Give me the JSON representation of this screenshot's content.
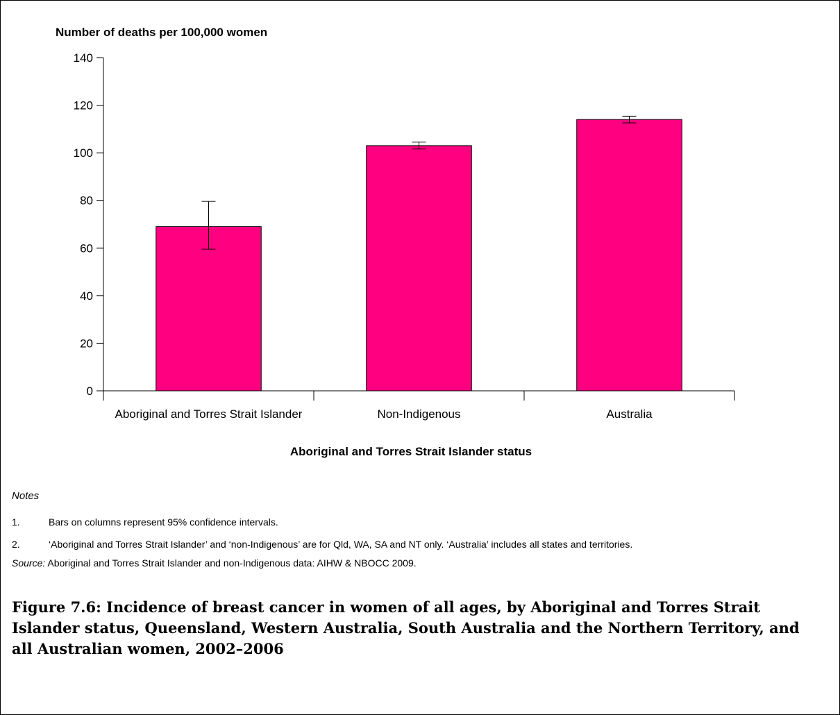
{
  "chart_data": {
    "type": "bar",
    "ylabel": "Number of deaths per 100,000 women",
    "xlabel": "Aboriginal and Torres Strait Islander status",
    "categories": [
      "Aboriginal and Torres Strait Islander",
      "Non-Indigenous",
      "Australia"
    ],
    "values": [
      69,
      103,
      114
    ],
    "ci_lower": [
      59.5,
      101.6,
      112.6
    ],
    "ci_upper": [
      79.6,
      104.5,
      115.4
    ],
    "ylim": [
      0,
      140
    ],
    "yticks": [
      0,
      20,
      40,
      60,
      80,
      100,
      120,
      140
    ],
    "bar_color": "#ff0080",
    "grid": false,
    "legend": "none"
  },
  "notes": {
    "heading": "Notes",
    "items": [
      {
        "number": "1.",
        "text": "Bars on columns represent 95% confidence intervals."
      },
      {
        "number": "2.",
        "text": "‘Aboriginal and Torres Strait Islander’ and ‘non-Indigenous’ are for Qld, WA, SA and NT only. ‘Australia’ includes all states and territories."
      }
    ]
  },
  "source": {
    "label": "Source:",
    "text": " Aboriginal and Torres Strait Islander and non-Indigenous data: AIHW & NBOCC 2009."
  },
  "caption": "Figure 7.6: Incidence of breast cancer in women of all ages, by Aboriginal and Torres Strait Islander status, Queensland, Western Australia, South Australia and the Northern Territory, and all Australian women, 2002–2006"
}
